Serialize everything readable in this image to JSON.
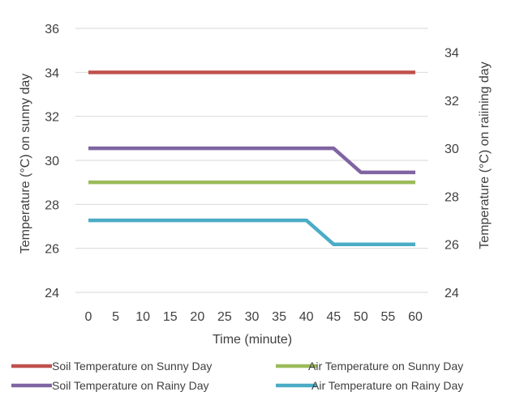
{
  "chart_data": {
    "type": "line",
    "x": [
      0,
      5,
      10,
      15,
      20,
      25,
      30,
      35,
      40,
      45,
      50,
      55,
      60
    ],
    "xlabel": "Time (minute)",
    "ylabel": "Temperature  (°C) on sunny day",
    "y2label": "Temperature  (°C) on raiining day",
    "ylim": [
      24,
      36
    ],
    "y2lim": [
      24,
      35
    ],
    "y_ticks": [
      24,
      26,
      28,
      30,
      32,
      34,
      36
    ],
    "y2_ticks": [
      24,
      26,
      28,
      30,
      32,
      34
    ],
    "grid": true,
    "legend_position": "bottom",
    "series": [
      {
        "name": "Soil Temperature on Sunny Day",
        "axis": "left",
        "color": "#C0504D",
        "values": [
          34,
          34,
          34,
          34,
          34,
          34,
          34,
          34,
          34,
          34,
          34,
          34,
          34
        ]
      },
      {
        "name": "Air Temperature on Sunny Day",
        "axis": "left",
        "color": "#9BBB59",
        "values": [
          29,
          29,
          29,
          29,
          29,
          29,
          29,
          29,
          29,
          29,
          29,
          29,
          29
        ]
      },
      {
        "name": "Soil Temperature on Rainy Day",
        "axis": "right",
        "color": "#8064A2",
        "values": [
          30,
          30,
          30,
          30,
          30,
          30,
          30,
          30,
          30,
          30,
          29,
          29,
          29
        ]
      },
      {
        "name": "Air Temperature on Rainy Day",
        "axis": "right",
        "color": "#4BACC6",
        "values": [
          27,
          27,
          27,
          27,
          27,
          27,
          27,
          27,
          27,
          26,
          26,
          26,
          26
        ]
      }
    ]
  }
}
